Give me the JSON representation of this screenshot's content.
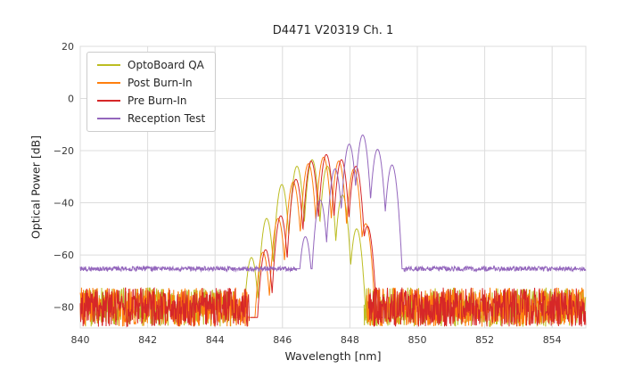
{
  "chart_data": {
    "type": "line",
    "title": "D4471 V20319 Ch. 1",
    "xlabel": "Wavelength [nm]",
    "ylabel": "Optical Power [dB]",
    "xlim": [
      840,
      855
    ],
    "ylim": [
      -88,
      20
    ],
    "xticks": [
      840,
      842,
      844,
      846,
      848,
      850,
      852,
      854
    ],
    "yticks": [
      20,
      0,
      -20,
      -40,
      -60,
      -80
    ],
    "grid": true,
    "legend_position": "upper left",
    "mode_k": 450,
    "series": [
      {
        "name": "OptoBoard QA",
        "color": "#bcbd22",
        "noise": {
          "level": -80,
          "amplitude": 7.5,
          "regions": [
            [
              840,
              844.62
            ],
            [
              848.42,
              855
            ]
          ]
        },
        "mode_floor": -84,
        "modes": [
          [
            845.08,
            -61
          ],
          [
            845.53,
            -46
          ],
          [
            845.98,
            -33
          ],
          [
            846.43,
            -26
          ],
          [
            846.88,
            -23.5
          ],
          [
            847.33,
            -26
          ],
          [
            847.78,
            -37
          ],
          [
            848.2,
            -50
          ]
        ]
      },
      {
        "name": "Post Burn-In",
        "color": "#ff7f0e",
        "noise": {
          "level": -80,
          "amplitude": 7.5,
          "regions": [
            [
              840,
              844.98
            ],
            [
              848.5,
              855
            ]
          ]
        },
        "mode_floor": -84,
        "modes": [
          [
            845.42,
            -59
          ],
          [
            845.87,
            -46
          ],
          [
            846.32,
            -32
          ],
          [
            846.77,
            -25
          ],
          [
            847.22,
            -22.5
          ],
          [
            847.67,
            -24
          ],
          [
            848.12,
            -27
          ],
          [
            848.47,
            -48
          ]
        ]
      },
      {
        "name": "Pre Burn-In",
        "color": "#d62728",
        "noise": {
          "level": -80,
          "amplitude": 7.5,
          "regions": [
            [
              840,
              845.02
            ],
            [
              848.55,
              855
            ]
          ]
        },
        "mode_floor": -84,
        "modes": [
          [
            845.5,
            -58
          ],
          [
            845.95,
            -45
          ],
          [
            846.4,
            -31
          ],
          [
            846.85,
            -24
          ],
          [
            847.3,
            -21.5
          ],
          [
            847.75,
            -23.5
          ],
          [
            848.18,
            -26
          ],
          [
            848.52,
            -49
          ]
        ]
      },
      {
        "name": "Reception Test",
        "color": "#9467bd",
        "noise": {
          "level": -65.3,
          "amplitude": 0.9,
          "regions": [
            [
              840,
              846.42
            ],
            [
              849.6,
              855
            ]
          ]
        },
        "mode_floor": -65.3,
        "modes": [
          [
            846.68,
            -53
          ],
          [
            847.12,
            -39
          ],
          [
            847.56,
            -27
          ],
          [
            847.98,
            -17.5
          ],
          [
            848.38,
            -14
          ],
          [
            848.82,
            -19.5
          ],
          [
            849.25,
            -25.5
          ]
        ]
      }
    ]
  }
}
